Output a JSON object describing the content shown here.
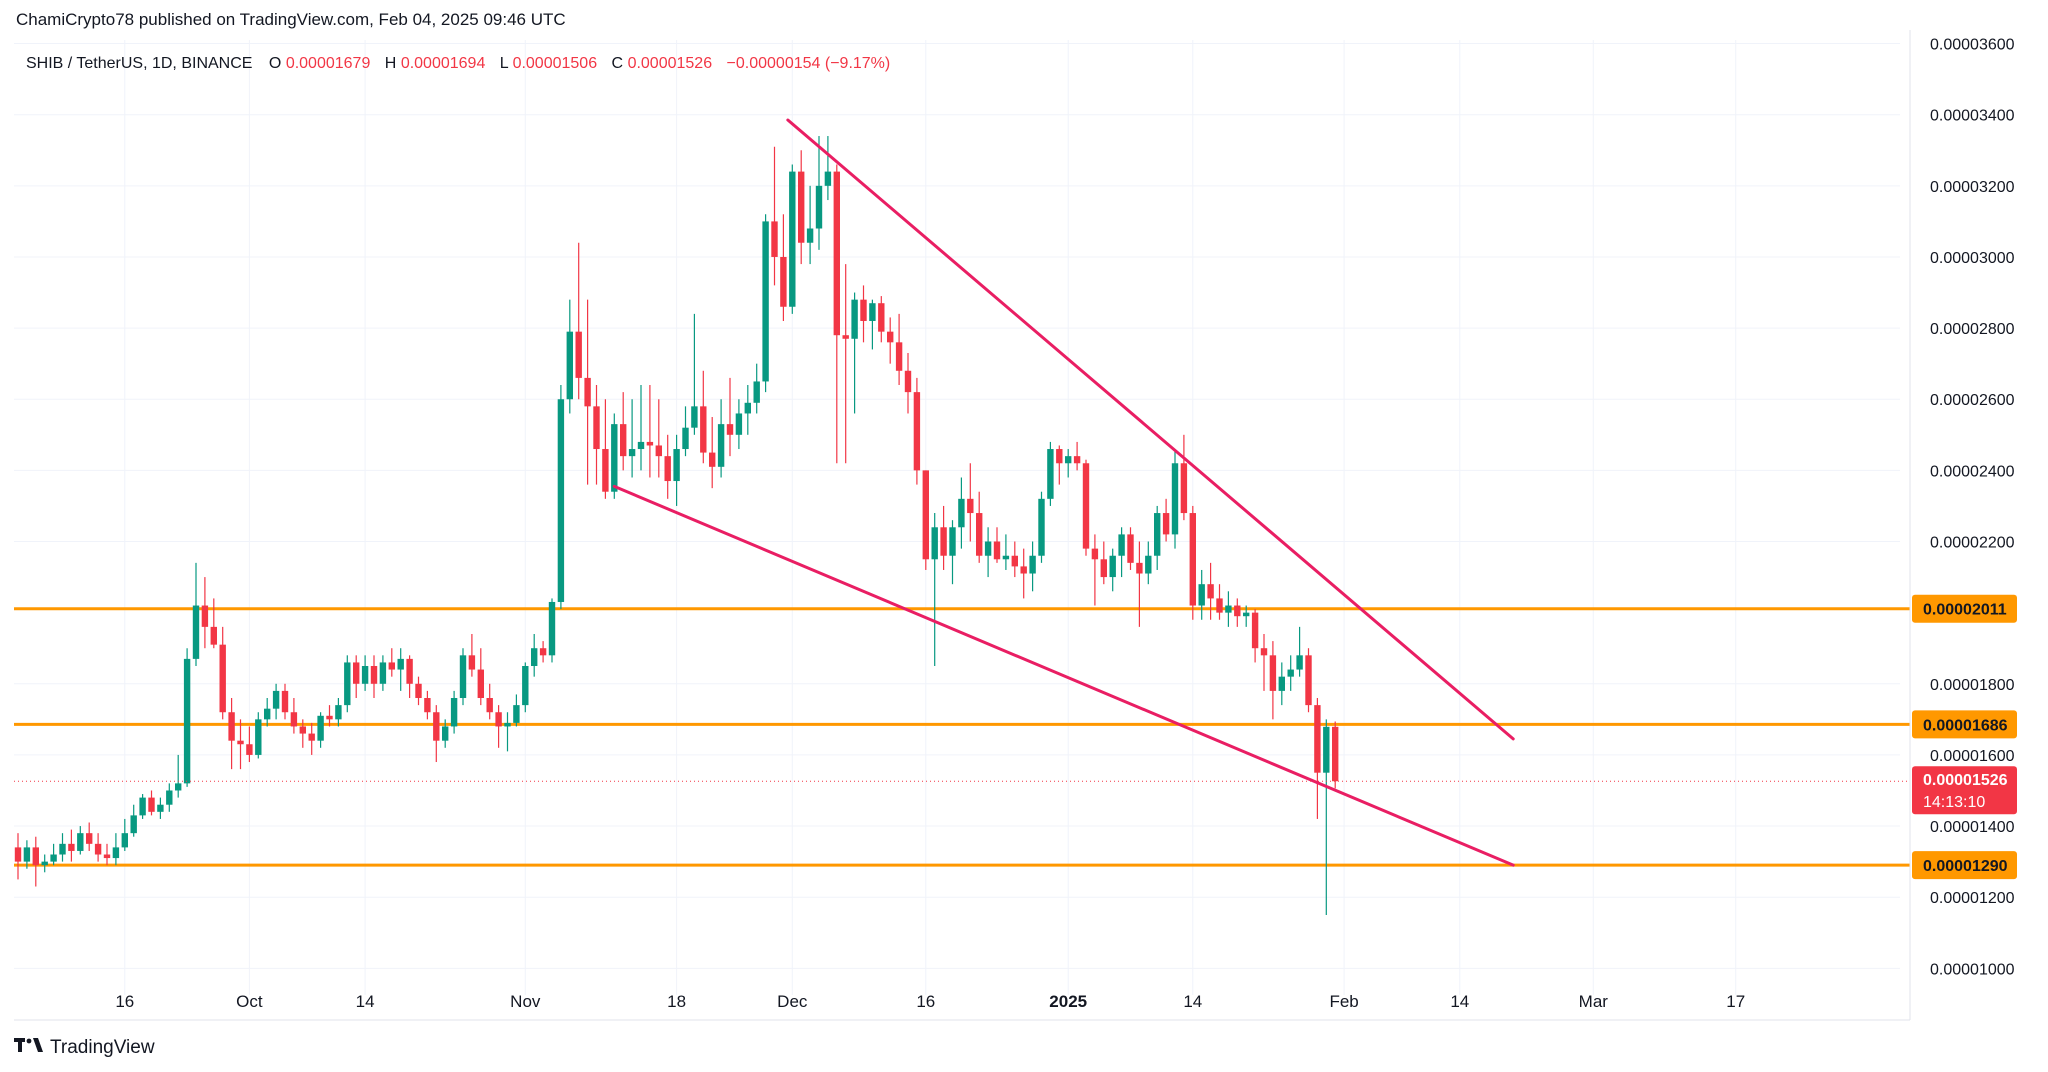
{
  "header": {
    "published": "ChamiCrypto78 published on TradingView.com, Feb 04, 2025 09:46 UTC"
  },
  "legend": {
    "symbol": "SHIB / TetherUS, 1D, BINANCE",
    "o_label": "O",
    "o_value": "0.00001679",
    "h_label": "H",
    "h_value": "0.00001694",
    "l_label": "L",
    "l_value": "0.00001506",
    "c_label": "C",
    "c_value": "0.00001526",
    "change": "−0.00000154 (−9.17%)"
  },
  "brand": {
    "logo": "tv-logo-icon",
    "text": "TradingView"
  },
  "chart_data": {
    "type": "candlestick",
    "title": "SHIB / TetherUS, 1D, BINANCE",
    "ylim": [
      9.25e-06,
      3.61e-05
    ],
    "y_ticks": [
      {
        "value": 1e-05,
        "label": "0.00001000"
      },
      {
        "value": 1.2e-05,
        "label": "0.00001200"
      },
      {
        "value": 1.4e-05,
        "label": "0.00001400"
      },
      {
        "value": 1.6e-05,
        "label": "0.00001600"
      },
      {
        "value": 1.8e-05,
        "label": "0.00001800"
      },
      {
        "value": 2.2e-05,
        "label": "0.00002200"
      },
      {
        "value": 2.4e-05,
        "label": "0.00002400"
      },
      {
        "value": 2.6e-05,
        "label": "0.00002600"
      },
      {
        "value": 2.8e-05,
        "label": "0.00002800"
      },
      {
        "value": 3e-05,
        "label": "0.00003000"
      },
      {
        "value": 3.2e-05,
        "label": "0.00003200"
      },
      {
        "value": 3.4e-05,
        "label": "0.00003400"
      },
      {
        "value": 3.6e-05,
        "label": "0.00003600"
      }
    ],
    "x_ticks": [
      {
        "index": 12,
        "label": "16",
        "bold": false
      },
      {
        "index": 26,
        "label": "Oct",
        "bold": false
      },
      {
        "index": 39,
        "label": "14",
        "bold": false
      },
      {
        "index": 57,
        "label": "Nov",
        "bold": false
      },
      {
        "index": 74,
        "label": "18",
        "bold": false
      },
      {
        "index": 87,
        "label": "Dec",
        "bold": false
      },
      {
        "index": 102,
        "label": "16",
        "bold": false
      },
      {
        "index": 118,
        "label": "2025",
        "bold": true
      },
      {
        "index": 132,
        "label": "14",
        "bold": false
      },
      {
        "index": 149,
        "label": "Feb",
        "bold": false
      },
      {
        "index": 162,
        "label": "14",
        "bold": false
      },
      {
        "index": 177,
        "label": "Mar",
        "bold": false
      },
      {
        "index": 193,
        "label": "17",
        "bold": false
      }
    ],
    "candles": [
      {
        "o": 1.34e-05,
        "h": 1.38e-05,
        "l": 1.25e-05,
        "c": 1.3e-05
      },
      {
        "o": 1.3e-05,
        "h": 1.36e-05,
        "l": 1.28e-05,
        "c": 1.34e-05
      },
      {
        "o": 1.34e-05,
        "h": 1.37e-05,
        "l": 1.23e-05,
        "c": 1.29e-05
      },
      {
        "o": 1.29e-05,
        "h": 1.32e-05,
        "l": 1.27e-05,
        "c": 1.3e-05
      },
      {
        "o": 1.3e-05,
        "h": 1.35e-05,
        "l": 1.29e-05,
        "c": 1.32e-05
      },
      {
        "o": 1.32e-05,
        "h": 1.38e-05,
        "l": 1.3e-05,
        "c": 1.35e-05
      },
      {
        "o": 1.35e-05,
        "h": 1.39e-05,
        "l": 1.3e-05,
        "c": 1.33e-05
      },
      {
        "o": 1.33e-05,
        "h": 1.4e-05,
        "l": 1.32e-05,
        "c": 1.38e-05
      },
      {
        "o": 1.38e-05,
        "h": 1.41e-05,
        "l": 1.33e-05,
        "c": 1.35e-05
      },
      {
        "o": 1.35e-05,
        "h": 1.38e-05,
        "l": 1.3e-05,
        "c": 1.32e-05
      },
      {
        "o": 1.32e-05,
        "h": 1.35e-05,
        "l": 1.29e-05,
        "c": 1.31e-05
      },
      {
        "o": 1.31e-05,
        "h": 1.38e-05,
        "l": 1.29e-05,
        "c": 1.34e-05
      },
      {
        "o": 1.34e-05,
        "h": 1.42e-05,
        "l": 1.33e-05,
        "c": 1.38e-05
      },
      {
        "o": 1.38e-05,
        "h": 1.46e-05,
        "l": 1.37e-05,
        "c": 1.43e-05
      },
      {
        "o": 1.43e-05,
        "h": 1.49e-05,
        "l": 1.42e-05,
        "c": 1.48e-05
      },
      {
        "o": 1.48e-05,
        "h": 1.5e-05,
        "l": 1.43e-05,
        "c": 1.44e-05
      },
      {
        "o": 1.44e-05,
        "h": 1.48e-05,
        "l": 1.42e-05,
        "c": 1.46e-05
      },
      {
        "o": 1.46e-05,
        "h": 1.52e-05,
        "l": 1.44e-05,
        "c": 1.5e-05
      },
      {
        "o": 1.5e-05,
        "h": 1.6e-05,
        "l": 1.48e-05,
        "c": 1.52e-05
      },
      {
        "o": 1.52e-05,
        "h": 1.9e-05,
        "l": 1.51e-05,
        "c": 1.87e-05
      },
      {
        "o": 1.87e-05,
        "h": 2.14e-05,
        "l": 1.85e-05,
        "c": 2.02e-05
      },
      {
        "o": 2.02e-05,
        "h": 2.1e-05,
        "l": 1.9e-05,
        "c": 1.96e-05
      },
      {
        "o": 1.96e-05,
        "h": 2.04e-05,
        "l": 1.9e-05,
        "c": 1.91e-05
      },
      {
        "o": 1.91e-05,
        "h": 1.96e-05,
        "l": 1.7e-05,
        "c": 1.72e-05
      },
      {
        "o": 1.72e-05,
        "h": 1.76e-05,
        "l": 1.56e-05,
        "c": 1.64e-05
      },
      {
        "o": 1.64e-05,
        "h": 1.7e-05,
        "l": 1.56e-05,
        "c": 1.63e-05
      },
      {
        "o": 1.63e-05,
        "h": 1.68e-05,
        "l": 1.58e-05,
        "c": 1.6e-05
      },
      {
        "o": 1.6e-05,
        "h": 1.72e-05,
        "l": 1.59e-05,
        "c": 1.7e-05
      },
      {
        "o": 1.7e-05,
        "h": 1.76e-05,
        "l": 1.68e-05,
        "c": 1.73e-05
      },
      {
        "o": 1.73e-05,
        "h": 1.8e-05,
        "l": 1.7e-05,
        "c": 1.78e-05
      },
      {
        "o": 1.78e-05,
        "h": 1.8e-05,
        "l": 1.7e-05,
        "c": 1.72e-05
      },
      {
        "o": 1.72e-05,
        "h": 1.76e-05,
        "l": 1.66e-05,
        "c": 1.68e-05
      },
      {
        "o": 1.68e-05,
        "h": 1.7e-05,
        "l": 1.62e-05,
        "c": 1.66e-05
      },
      {
        "o": 1.66e-05,
        "h": 1.69e-05,
        "l": 1.6e-05,
        "c": 1.64e-05
      },
      {
        "o": 1.64e-05,
        "h": 1.72e-05,
        "l": 1.62e-05,
        "c": 1.71e-05
      },
      {
        "o": 1.71e-05,
        "h": 1.74e-05,
        "l": 1.68e-05,
        "c": 1.7e-05
      },
      {
        "o": 1.7e-05,
        "h": 1.76e-05,
        "l": 1.68e-05,
        "c": 1.74e-05
      },
      {
        "o": 1.74e-05,
        "h": 1.88e-05,
        "l": 1.72e-05,
        "c": 1.86e-05
      },
      {
        "o": 1.86e-05,
        "h": 1.88e-05,
        "l": 1.76e-05,
        "c": 1.8e-05
      },
      {
        "o": 1.8e-05,
        "h": 1.88e-05,
        "l": 1.78e-05,
        "c": 1.85e-05
      },
      {
        "o": 1.85e-05,
        "h": 1.88e-05,
        "l": 1.76e-05,
        "c": 1.8e-05
      },
      {
        "o": 1.8e-05,
        "h": 1.88e-05,
        "l": 1.78e-05,
        "c": 1.86e-05
      },
      {
        "o": 1.86e-05,
        "h": 1.9e-05,
        "l": 1.82e-05,
        "c": 1.84e-05
      },
      {
        "o": 1.84e-05,
        "h": 1.9e-05,
        "l": 1.78e-05,
        "c": 1.87e-05
      },
      {
        "o": 1.87e-05,
        "h": 1.88e-05,
        "l": 1.76e-05,
        "c": 1.8e-05
      },
      {
        "o": 1.8e-05,
        "h": 1.82e-05,
        "l": 1.74e-05,
        "c": 1.76e-05
      },
      {
        "o": 1.76e-05,
        "h": 1.78e-05,
        "l": 1.7e-05,
        "c": 1.72e-05
      },
      {
        "o": 1.72e-05,
        "h": 1.74e-05,
        "l": 1.58e-05,
        "c": 1.64e-05
      },
      {
        "o": 1.64e-05,
        "h": 1.7e-05,
        "l": 1.62e-05,
        "c": 1.68e-05
      },
      {
        "o": 1.68e-05,
        "h": 1.78e-05,
        "l": 1.66e-05,
        "c": 1.76e-05
      },
      {
        "o": 1.76e-05,
        "h": 1.9e-05,
        "l": 1.74e-05,
        "c": 1.88e-05
      },
      {
        "o": 1.88e-05,
        "h": 1.94e-05,
        "l": 1.82e-05,
        "c": 1.84e-05
      },
      {
        "o": 1.84e-05,
        "h": 1.9e-05,
        "l": 1.74e-05,
        "c": 1.76e-05
      },
      {
        "o": 1.76e-05,
        "h": 1.8e-05,
        "l": 1.7e-05,
        "c": 1.72e-05
      },
      {
        "o": 1.72e-05,
        "h": 1.74e-05,
        "l": 1.62e-05,
        "c": 1.68e-05
      },
      {
        "o": 1.68e-05,
        "h": 1.72e-05,
        "l": 1.61e-05,
        "c": 1.69e-05
      },
      {
        "o": 1.69e-05,
        "h": 1.77e-05,
        "l": 1.68e-05,
        "c": 1.74e-05
      },
      {
        "o": 1.74e-05,
        "h": 1.86e-05,
        "l": 1.72e-05,
        "c": 1.85e-05
      },
      {
        "o": 1.85e-05,
        "h": 1.94e-05,
        "l": 1.82e-05,
        "c": 1.9e-05
      },
      {
        "o": 1.9e-05,
        "h": 1.92e-05,
        "l": 1.86e-05,
        "c": 1.88e-05
      },
      {
        "o": 1.88e-05,
        "h": 2.04e-05,
        "l": 1.86e-05,
        "c": 2.03e-05
      },
      {
        "o": 2.03e-05,
        "h": 2.64e-05,
        "l": 2.01e-05,
        "c": 2.6e-05
      },
      {
        "o": 2.6e-05,
        "h": 2.88e-05,
        "l": 2.56e-05,
        "c": 2.79e-05
      },
      {
        "o": 2.79e-05,
        "h": 3.04e-05,
        "l": 2.6e-05,
        "c": 2.66e-05
      },
      {
        "o": 2.66e-05,
        "h": 2.88e-05,
        "l": 2.36e-05,
        "c": 2.58e-05
      },
      {
        "o": 2.58e-05,
        "h": 2.64e-05,
        "l": 2.36e-05,
        "c": 2.46e-05
      },
      {
        "o": 2.46e-05,
        "h": 2.6e-05,
        "l": 2.32e-05,
        "c": 2.34e-05
      },
      {
        "o": 2.34e-05,
        "h": 2.56e-05,
        "l": 2.32e-05,
        "c": 2.53e-05
      },
      {
        "o": 2.53e-05,
        "h": 2.62e-05,
        "l": 2.4e-05,
        "c": 2.44e-05
      },
      {
        "o": 2.44e-05,
        "h": 2.6e-05,
        "l": 2.38e-05,
        "c": 2.46e-05
      },
      {
        "o": 2.46e-05,
        "h": 2.64e-05,
        "l": 2.4e-05,
        "c": 2.48e-05
      },
      {
        "o": 2.48e-05,
        "h": 2.64e-05,
        "l": 2.38e-05,
        "c": 2.47e-05
      },
      {
        "o": 2.47e-05,
        "h": 2.6e-05,
        "l": 2.38e-05,
        "c": 2.44e-05
      },
      {
        "o": 2.44e-05,
        "h": 2.5e-05,
        "l": 2.32e-05,
        "c": 2.37e-05
      },
      {
        "o": 2.37e-05,
        "h": 2.5e-05,
        "l": 2.3e-05,
        "c": 2.46e-05
      },
      {
        "o": 2.46e-05,
        "h": 2.58e-05,
        "l": 2.44e-05,
        "c": 2.52e-05
      },
      {
        "o": 2.52e-05,
        "h": 2.84e-05,
        "l": 2.5e-05,
        "c": 2.58e-05
      },
      {
        "o": 2.58e-05,
        "h": 2.68e-05,
        "l": 2.42e-05,
        "c": 2.45e-05
      },
      {
        "o": 2.45e-05,
        "h": 2.55e-05,
        "l": 2.35e-05,
        "c": 2.41e-05
      },
      {
        "o": 2.41e-05,
        "h": 2.6e-05,
        "l": 2.38e-05,
        "c": 2.53e-05
      },
      {
        "o": 2.53e-05,
        "h": 2.66e-05,
        "l": 2.44e-05,
        "c": 2.5e-05
      },
      {
        "o": 2.5e-05,
        "h": 2.6e-05,
        "l": 2.46e-05,
        "c": 2.56e-05
      },
      {
        "o": 2.56e-05,
        "h": 2.64e-05,
        "l": 2.5e-05,
        "c": 2.59e-05
      },
      {
        "o": 2.59e-05,
        "h": 2.7e-05,
        "l": 2.56e-05,
        "c": 2.65e-05
      },
      {
        "o": 2.65e-05,
        "h": 3.12e-05,
        "l": 2.62e-05,
        "c": 3.1e-05
      },
      {
        "o": 3.1e-05,
        "h": 3.31e-05,
        "l": 2.92e-05,
        "c": 3e-05
      },
      {
        "o": 3e-05,
        "h": 3.12e-05,
        "l": 2.82e-05,
        "c": 2.86e-05
      },
      {
        "o": 2.86e-05,
        "h": 3.26e-05,
        "l": 2.84e-05,
        "c": 3.24e-05
      },
      {
        "o": 3.24e-05,
        "h": 3.3e-05,
        "l": 2.98e-05,
        "c": 3.04e-05
      },
      {
        "o": 3.04e-05,
        "h": 3.2e-05,
        "l": 2.98e-05,
        "c": 3.08e-05
      },
      {
        "o": 3.08e-05,
        "h": 3.34e-05,
        "l": 3.02e-05,
        "c": 3.2e-05
      },
      {
        "o": 3.2e-05,
        "h": 3.34e-05,
        "l": 3.16e-05,
        "c": 3.24e-05
      },
      {
        "o": 3.24e-05,
        "h": 3.26e-05,
        "l": 2.42e-05,
        "c": 2.78e-05
      },
      {
        "o": 2.78e-05,
        "h": 2.98e-05,
        "l": 2.42e-05,
        "c": 2.77e-05
      },
      {
        "o": 2.77e-05,
        "h": 2.9e-05,
        "l": 2.56e-05,
        "c": 2.88e-05
      },
      {
        "o": 2.88e-05,
        "h": 2.92e-05,
        "l": 2.76e-05,
        "c": 2.82e-05
      },
      {
        "o": 2.82e-05,
        "h": 2.88e-05,
        "l": 2.74e-05,
        "c": 2.87e-05
      },
      {
        "o": 2.87e-05,
        "h": 2.89e-05,
        "l": 2.76e-05,
        "c": 2.79e-05
      },
      {
        "o": 2.79e-05,
        "h": 2.83e-05,
        "l": 2.7e-05,
        "c": 2.76e-05
      },
      {
        "o": 2.76e-05,
        "h": 2.84e-05,
        "l": 2.64e-05,
        "c": 2.68e-05
      },
      {
        "o": 2.68e-05,
        "h": 2.73e-05,
        "l": 2.56e-05,
        "c": 2.62e-05
      },
      {
        "o": 2.62e-05,
        "h": 2.66e-05,
        "l": 2.36e-05,
        "c": 2.4e-05
      },
      {
        "o": 2.4e-05,
        "h": 2.4e-05,
        "l": 2.12e-05,
        "c": 2.15e-05
      },
      {
        "o": 2.15e-05,
        "h": 2.28e-05,
        "l": 1.85e-05,
        "c": 2.24e-05
      },
      {
        "o": 2.24e-05,
        "h": 2.3e-05,
        "l": 2.12e-05,
        "c": 2.16e-05
      },
      {
        "o": 2.16e-05,
        "h": 2.26e-05,
        "l": 2.08e-05,
        "c": 2.24e-05
      },
      {
        "o": 2.24e-05,
        "h": 2.38e-05,
        "l": 2.18e-05,
        "c": 2.32e-05
      },
      {
        "o": 2.32e-05,
        "h": 2.42e-05,
        "l": 2.2e-05,
        "c": 2.28e-05
      },
      {
        "o": 2.28e-05,
        "h": 2.34e-05,
        "l": 2.14e-05,
        "c": 2.16e-05
      },
      {
        "o": 2.16e-05,
        "h": 2.24e-05,
        "l": 2.1e-05,
        "c": 2.2e-05
      },
      {
        "o": 2.2e-05,
        "h": 2.24e-05,
        "l": 2.14e-05,
        "c": 2.15e-05
      },
      {
        "o": 2.15e-05,
        "h": 2.22e-05,
        "l": 2.12e-05,
        "c": 2.16e-05
      },
      {
        "o": 2.16e-05,
        "h": 2.2e-05,
        "l": 2.1e-05,
        "c": 2.13e-05
      },
      {
        "o": 2.13e-05,
        "h": 2.18e-05,
        "l": 2.04e-05,
        "c": 2.11e-05
      },
      {
        "o": 2.11e-05,
        "h": 2.2e-05,
        "l": 2.06e-05,
        "c": 2.16e-05
      },
      {
        "o": 2.16e-05,
        "h": 2.34e-05,
        "l": 2.14e-05,
        "c": 2.32e-05
      },
      {
        "o": 2.32e-05,
        "h": 2.48e-05,
        "l": 2.3e-05,
        "c": 2.46e-05
      },
      {
        "o": 2.46e-05,
        "h": 2.47e-05,
        "l": 2.36e-05,
        "c": 2.42e-05
      },
      {
        "o": 2.42e-05,
        "h": 2.46e-05,
        "l": 2.38e-05,
        "c": 2.44e-05
      },
      {
        "o": 2.44e-05,
        "h": 2.48e-05,
        "l": 2.4e-05,
        "c": 2.42e-05
      },
      {
        "o": 2.42e-05,
        "h": 2.43e-05,
        "l": 2.16e-05,
        "c": 2.18e-05
      },
      {
        "o": 2.18e-05,
        "h": 2.22e-05,
        "l": 2.02e-05,
        "c": 2.15e-05
      },
      {
        "o": 2.15e-05,
        "h": 2.2e-05,
        "l": 2.08e-05,
        "c": 2.1e-05
      },
      {
        "o": 2.1e-05,
        "h": 2.18e-05,
        "l": 2.06e-05,
        "c": 2.16e-05
      },
      {
        "o": 2.16e-05,
        "h": 2.24e-05,
        "l": 2.1e-05,
        "c": 2.22e-05
      },
      {
        "o": 2.22e-05,
        "h": 2.24e-05,
        "l": 2.12e-05,
        "c": 2.14e-05
      },
      {
        "o": 2.14e-05,
        "h": 2.2e-05,
        "l": 1.96e-05,
        "c": 2.11e-05
      },
      {
        "o": 2.11e-05,
        "h": 2.2e-05,
        "l": 2.08e-05,
        "c": 2.16e-05
      },
      {
        "o": 2.16e-05,
        "h": 2.3e-05,
        "l": 2.12e-05,
        "c": 2.28e-05
      },
      {
        "o": 2.28e-05,
        "h": 2.32e-05,
        "l": 2.2e-05,
        "c": 2.22e-05
      },
      {
        "o": 2.22e-05,
        "h": 2.46e-05,
        "l": 2.18e-05,
        "c": 2.42e-05
      },
      {
        "o": 2.42e-05,
        "h": 2.5e-05,
        "l": 2.26e-05,
        "c": 2.28e-05
      },
      {
        "o": 2.28e-05,
        "h": 2.3e-05,
        "l": 1.98e-05,
        "c": 2.02e-05
      },
      {
        "o": 2.02e-05,
        "h": 2.12e-05,
        "l": 1.98e-05,
        "c": 2.08e-05
      },
      {
        "o": 2.08e-05,
        "h": 2.14e-05,
        "l": 1.98e-05,
        "c": 2.04e-05
      },
      {
        "o": 2.04e-05,
        "h": 2.08e-05,
        "l": 1.98e-05,
        "c": 2e-05
      },
      {
        "o": 2e-05,
        "h": 2.06e-05,
        "l": 1.96e-05,
        "c": 2.02e-05
      },
      {
        "o": 2.02e-05,
        "h": 2.04e-05,
        "l": 1.96e-05,
        "c": 1.99e-05
      },
      {
        "o": 1.99e-05,
        "h": 2.02e-05,
        "l": 1.96e-05,
        "c": 2e-05
      },
      {
        "o": 2e-05,
        "h": 2.01e-05,
        "l": 1.86e-05,
        "c": 1.9e-05
      },
      {
        "o": 1.9e-05,
        "h": 1.94e-05,
        "l": 1.78e-05,
        "c": 1.88e-05
      },
      {
        "o": 1.88e-05,
        "h": 1.92e-05,
        "l": 1.7e-05,
        "c": 1.78e-05
      },
      {
        "o": 1.78e-05,
        "h": 1.86e-05,
        "l": 1.74e-05,
        "c": 1.82e-05
      },
      {
        "o": 1.82e-05,
        "h": 1.88e-05,
        "l": 1.78e-05,
        "c": 1.84e-05
      },
      {
        "o": 1.84e-05,
        "h": 1.96e-05,
        "l": 1.82e-05,
        "c": 1.88e-05
      },
      {
        "o": 1.88e-05,
        "h": 1.9e-05,
        "l": 1.72e-05,
        "c": 1.74e-05
      },
      {
        "o": 1.74e-05,
        "h": 1.76e-05,
        "l": 1.42e-05,
        "c": 1.55e-05
      },
      {
        "o": 1.55e-05,
        "h": 1.7e-05,
        "l": 1.15e-05,
        "c": 1.679e-05
      },
      {
        "o": 1.679e-05,
        "h": 1.694e-05,
        "l": 1.506e-05,
        "c": 1.526e-05
      }
    ],
    "trendlines": [
      {
        "name": "upper-trendline",
        "start": {
          "index": 86.5,
          "value": 3.385e-05
        },
        "end": {
          "index": 168.0,
          "value": 1.645e-05
        }
      },
      {
        "name": "lower-trendline",
        "start": {
          "index": 67.0,
          "value": 2.355e-05
        },
        "end": {
          "index": 168.0,
          "value": 1.29e-05
        }
      }
    ],
    "hlines": [
      {
        "name": "resistance-line",
        "value": 2.011e-05,
        "label": "0.00002011"
      },
      {
        "name": "support-line",
        "value": 1.686e-05,
        "label": "0.00001686"
      },
      {
        "name": "target-line",
        "value": 1.29e-05,
        "label": "0.00001290"
      }
    ],
    "last_price": {
      "value": 1.526e-05,
      "label": "0.00001526",
      "countdown": "14:13:10"
    },
    "colors": {
      "up": "#089981",
      "down": "#f23645",
      "trendline": "#e91e63",
      "hline": "#ff9800",
      "axis_text": "#131722",
      "grid": "#f0f3fa"
    }
  }
}
